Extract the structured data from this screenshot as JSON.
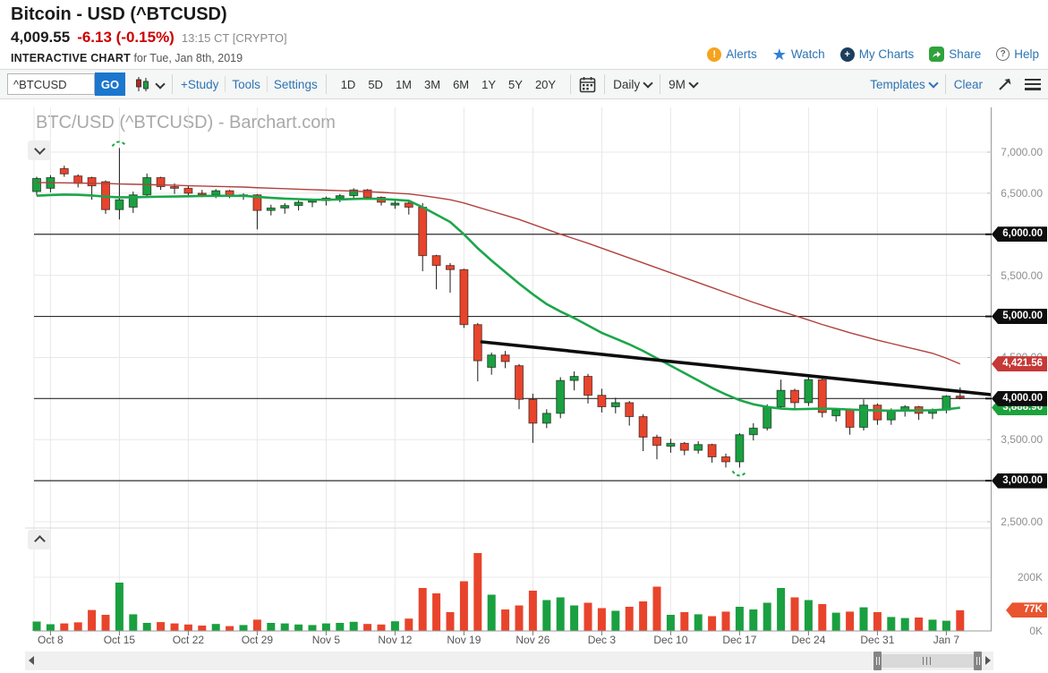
{
  "header": {
    "title": "Bitcoin - USD (^BTCUSD)",
    "price": "4,009.55",
    "change": "-6.13 (-0.15%)",
    "time": "13:15 CT [CRYPTO]",
    "chart_label": "INTERACTIVE CHART",
    "chart_date": "for Tue, Jan 8th, 2019"
  },
  "actions": [
    {
      "label": "Alerts",
      "icon": "alert"
    },
    {
      "label": "Watch",
      "icon": "star"
    },
    {
      "label": "My Charts",
      "icon": "mycharts"
    },
    {
      "label": "Share",
      "icon": "share"
    },
    {
      "label": "Help",
      "icon": "help"
    }
  ],
  "toolbar": {
    "symbol": "^BTCUSD",
    "go_label": "GO",
    "links": [
      "+Study",
      "Tools",
      "Settings"
    ],
    "ranges": [
      "1D",
      "5D",
      "1M",
      "3M",
      "6M",
      "1Y",
      "5Y",
      "20Y"
    ],
    "frequency": "Daily",
    "span": "9M",
    "templates_label": "Templates",
    "clear_label": "Clear"
  },
  "colors": {
    "up": "#1aa040",
    "down": "#e8442c",
    "ma_fast": "#1ca64a",
    "ma_slow": "#b0413e",
    "trendline": "#0d0d0d",
    "tag_black": "#0e0e0e",
    "tag_red": "#c53936",
    "tag_green": "#1ca23c",
    "tag_volume": "#e8552f",
    "grid_light": "#e8e8e8",
    "grid_dark": "#2d2d2d",
    "axis_line": "#9a9a9a",
    "link_blue": "#2d74b2",
    "go_button": "#1b76ce"
  },
  "chart_data": {
    "type": "candlestick+volume",
    "title": "BTC/USD (^BTCUSD) - Barchart.com",
    "frequency": "Daily",
    "price_axis": {
      "labels": [
        {
          "text": "7,000.00",
          "price": 7000,
          "style": "plain"
        },
        {
          "text": "6,500.00",
          "price": 6500,
          "style": "plain"
        },
        {
          "text": "6,000.00",
          "price": 6000,
          "style": "black"
        },
        {
          "text": "5,500.00",
          "price": 5500,
          "style": "plain"
        },
        {
          "text": "5,000.00",
          "price": 5000,
          "style": "black"
        },
        {
          "text": "4,500.00",
          "price": 4500,
          "style": "plain"
        },
        {
          "text": "4,421.56",
          "price": 4421.56,
          "style": "red"
        },
        {
          "text": "3,888.96",
          "price": 3888.96,
          "style": "green"
        },
        {
          "text": "4,000.00",
          "price": 4000,
          "style": "black"
        },
        {
          "text": "3,500.00",
          "price": 3500,
          "style": "plain"
        },
        {
          "text": "3,000.00",
          "price": 3000,
          "style": "black"
        },
        {
          "text": "2,500.00",
          "price": 2500,
          "style": "plain"
        }
      ],
      "dark_gridlines": [
        6000,
        5000,
        4000,
        3000
      ],
      "light_gridlines": [
        7000,
        6500,
        5500,
        4500,
        3500,
        2500
      ],
      "visible_range": [
        2424,
        7545
      ]
    },
    "volume_axis": {
      "labels": [
        {
          "text": "200K",
          "vol": 200,
          "style": "plain"
        },
        {
          "text": "77K",
          "vol": 77,
          "style": "volume"
        },
        {
          "text": "0K",
          "vol": 0,
          "style": "plain"
        }
      ],
      "light_gridlines": [
        200
      ],
      "visible_range": [
        0,
        300
      ]
    },
    "x_axis": {
      "ticks": [
        {
          "label": "Oct 8",
          "idx": 1
        },
        {
          "label": "Oct 15",
          "idx": 6
        },
        {
          "label": "Oct 22",
          "idx": 11
        },
        {
          "label": "Oct 29",
          "idx": 16
        },
        {
          "label": "Nov 5",
          "idx": 21
        },
        {
          "label": "Nov 12",
          "idx": 26
        },
        {
          "label": "Nov 19",
          "idx": 31
        },
        {
          "label": "Nov 26",
          "idx": 36
        },
        {
          "label": "Dec 3",
          "idx": 41
        },
        {
          "label": "Dec 10",
          "idx": 46
        },
        {
          "label": "Dec 17",
          "idx": 51
        },
        {
          "label": "Dec 24",
          "idx": 56
        },
        {
          "label": "Dec 31",
          "idx": 61
        },
        {
          "label": "Jan 7",
          "idx": 66
        }
      ]
    },
    "candles_format": [
      "date",
      "open",
      "high",
      "low",
      "close",
      "volume_K"
    ],
    "candles": [
      [
        "Oct 5",
        6520,
        6700,
        6470,
        6680,
        35
      ],
      [
        "Oct 8",
        6560,
        6720,
        6510,
        6690,
        25
      ],
      [
        "Oct 9",
        6800,
        6835,
        6700,
        6735,
        28
      ],
      [
        "Oct 10",
        6710,
        6730,
        6570,
        6620,
        32
      ],
      [
        "Oct 11",
        6690,
        6700,
        6420,
        6590,
        78
      ],
      [
        "Oct 12",
        6640,
        6655,
        6250,
        6300,
        60
      ],
      [
        "Oct 15",
        6300,
        7050,
        6180,
        6420,
        180
      ],
      [
        "Oct 16",
        6330,
        6520,
        6260,
        6480,
        62
      ],
      [
        "Oct 17",
        6480,
        6740,
        6450,
        6690,
        30
      ],
      [
        "Oct 18",
        6690,
        6700,
        6540,
        6580,
        33
      ],
      [
        "Oct 19",
        6580,
        6620,
        6490,
        6560,
        28
      ],
      [
        "Oct 22",
        6560,
        6590,
        6470,
        6500,
        24
      ],
      [
        "Oct 23",
        6500,
        6540,
        6450,
        6480,
        20
      ],
      [
        "Oct 24",
        6480,
        6550,
        6440,
        6530,
        26
      ],
      [
        "Oct 25",
        6530,
        6540,
        6440,
        6470,
        18
      ],
      [
        "Oct 26",
        6470,
        6500,
        6420,
        6480,
        22
      ],
      [
        "Oct 29",
        6480,
        6490,
        6060,
        6290,
        42
      ],
      [
        "Oct 30",
        6290,
        6360,
        6230,
        6320,
        30
      ],
      [
        "Oct 31",
        6320,
        6380,
        6250,
        6350,
        28
      ],
      [
        "Nov 1",
        6350,
        6410,
        6290,
        6390,
        24
      ],
      [
        "Nov 2",
        6390,
        6430,
        6330,
        6410,
        22
      ],
      [
        "Nov 5",
        6410,
        6460,
        6350,
        6440,
        28
      ],
      [
        "Nov 6",
        6440,
        6490,
        6390,
        6470,
        30
      ],
      [
        "Nov 7",
        6470,
        6560,
        6430,
        6540,
        34
      ],
      [
        "Nov 8",
        6540,
        6550,
        6420,
        6450,
        26
      ],
      [
        "Nov 9",
        6450,
        6460,
        6350,
        6390,
        24
      ],
      [
        "Nov 12",
        6355,
        6420,
        6310,
        6380,
        36
      ],
      [
        "Nov 13",
        6380,
        6400,
        6240,
        6330,
        46
      ],
      [
        "Nov 14",
        6330,
        6380,
        5550,
        5740,
        160
      ],
      [
        "Nov 15",
        5740,
        5750,
        5330,
        5620,
        140
      ],
      [
        "Nov 16",
        5620,
        5650,
        5290,
        5570,
        70
      ],
      [
        "Nov 19",
        5570,
        5580,
        4860,
        4900,
        185
      ],
      [
        "Nov 20",
        4900,
        4920,
        4210,
        4460,
        290
      ],
      [
        "Nov 21",
        4380,
        4560,
        4290,
        4530,
        135
      ],
      [
        "Nov 22",
        4530,
        4580,
        4370,
        4450,
        80
      ],
      [
        "Nov 23",
        4400,
        4420,
        3870,
        3990,
        95
      ],
      [
        "Nov 26",
        3990,
        4060,
        3460,
        3700,
        150
      ],
      [
        "Nov 27",
        3700,
        3870,
        3640,
        3820,
        115
      ],
      [
        "Nov 28",
        3820,
        4260,
        3760,
        4220,
        125
      ],
      [
        "Nov 29",
        4220,
        4330,
        4100,
        4270,
        95
      ],
      [
        "Nov 30",
        4270,
        4300,
        3940,
        4040,
        105
      ],
      [
        "Dec 3",
        4040,
        4120,
        3830,
        3900,
        85
      ],
      [
        "Dec 4",
        3900,
        4010,
        3820,
        3950,
        75
      ],
      [
        "Dec 5",
        3950,
        3970,
        3670,
        3780,
        90
      ],
      [
        "Dec 6",
        3780,
        3810,
        3360,
        3530,
        110
      ],
      [
        "Dec 7",
        3530,
        3560,
        3260,
        3430,
        165
      ],
      [
        "Dec 10",
        3420,
        3510,
        3340,
        3455,
        60
      ],
      [
        "Dec 11",
        3455,
        3470,
        3310,
        3370,
        70
      ],
      [
        "Dec 12",
        3370,
        3480,
        3330,
        3440,
        62
      ],
      [
        "Dec 13",
        3440,
        3450,
        3220,
        3290,
        55
      ],
      [
        "Dec 14",
        3290,
        3330,
        3160,
        3230,
        72
      ],
      [
        "Dec 17",
        3230,
        3580,
        3160,
        3560,
        90
      ],
      [
        "Dec 18",
        3560,
        3700,
        3490,
        3640,
        80
      ],
      [
        "Dec 19",
        3640,
        3930,
        3610,
        3900,
        105
      ],
      [
        "Dec 20",
        3900,
        4230,
        3870,
        4100,
        160
      ],
      [
        "Dec 21",
        4100,
        4120,
        3860,
        3950,
        125
      ],
      [
        "Dec 24",
        3950,
        4270,
        3910,
        4230,
        115
      ],
      [
        "Dec 25",
        4230,
        4250,
        3770,
        3830,
        100
      ],
      [
        "Dec 26",
        3790,
        3880,
        3720,
        3860,
        68
      ],
      [
        "Dec 27",
        3860,
        3880,
        3560,
        3650,
        72
      ],
      [
        "Dec 28",
        3650,
        3990,
        3610,
        3920,
        88
      ],
      [
        "Dec 31",
        3920,
        3940,
        3680,
        3740,
        70
      ],
      [
        "Jan 1",
        3740,
        3880,
        3680,
        3850,
        52
      ],
      [
        "Jan 2",
        3850,
        3920,
        3780,
        3900,
        48
      ],
      [
        "Jan 3",
        3900,
        3910,
        3740,
        3820,
        50
      ],
      [
        "Jan 4",
        3820,
        3880,
        3750,
        3860,
        42
      ],
      [
        "Jan 7",
        3860,
        4040,
        3820,
        4030,
        38
      ],
      [
        "Jan 8",
        4030,
        4135,
        3990,
        4008,
        77
      ]
    ],
    "green_ma": [
      6470,
      6478,
      6483,
      6480,
      6472,
      6458,
      6450,
      6450,
      6454,
      6458,
      6460,
      6463,
      6466,
      6468,
      6468,
      6468,
      6456,
      6444,
      6434,
      6428,
      6422,
      6420,
      6424,
      6430,
      6434,
      6430,
      6420,
      6408,
      6330,
      6240,
      6150,
      6000,
      5830,
      5680,
      5540,
      5400,
      5270,
      5150,
      5060,
      4980,
      4890,
      4800,
      4730,
      4660,
      4580,
      4490,
      4400,
      4310,
      4220,
      4130,
      4050,
      3980,
      3930,
      3898,
      3878,
      3870,
      3874,
      3878,
      3874,
      3866,
      3860,
      3856,
      3852,
      3854,
      3856,
      3858,
      3868,
      3889
    ],
    "red_ma": [
      6630,
      6628,
      6626,
      6624,
      6621,
      6618,
      6613,
      6609,
      6605,
      6601,
      6597,
      6591,
      6587,
      6583,
      6579,
      6575,
      6567,
      6561,
      6555,
      6549,
      6543,
      6537,
      6531,
      6525,
      6518,
      6511,
      6501,
      6491,
      6471,
      6446,
      6421,
      6381,
      6331,
      6281,
      6231,
      6181,
      6121,
      6061,
      6001,
      5946,
      5891,
      5831,
      5771,
      5711,
      5651,
      5591,
      5531,
      5471,
      5411,
      5351,
      5291,
      5231,
      5171,
      5116,
      5061,
      5011,
      4956,
      4901,
      4851,
      4801,
      4756,
      4711,
      4671,
      4631,
      4591,
      4551,
      4491,
      4422
    ],
    "green_ma_last": "3,888.96",
    "red_ma_last": "4,421.56",
    "last_volume": "77K",
    "trendline": {
      "from": {
        "idx": 32.3,
        "price": 4690
      },
      "to": {
        "idx": 69.4,
        "price": 4045
      }
    },
    "markers": [
      {
        "idx": 6,
        "price": 7050,
        "pos": "above"
      },
      {
        "idx": 51,
        "price": 3160,
        "pos": "below"
      }
    ]
  }
}
